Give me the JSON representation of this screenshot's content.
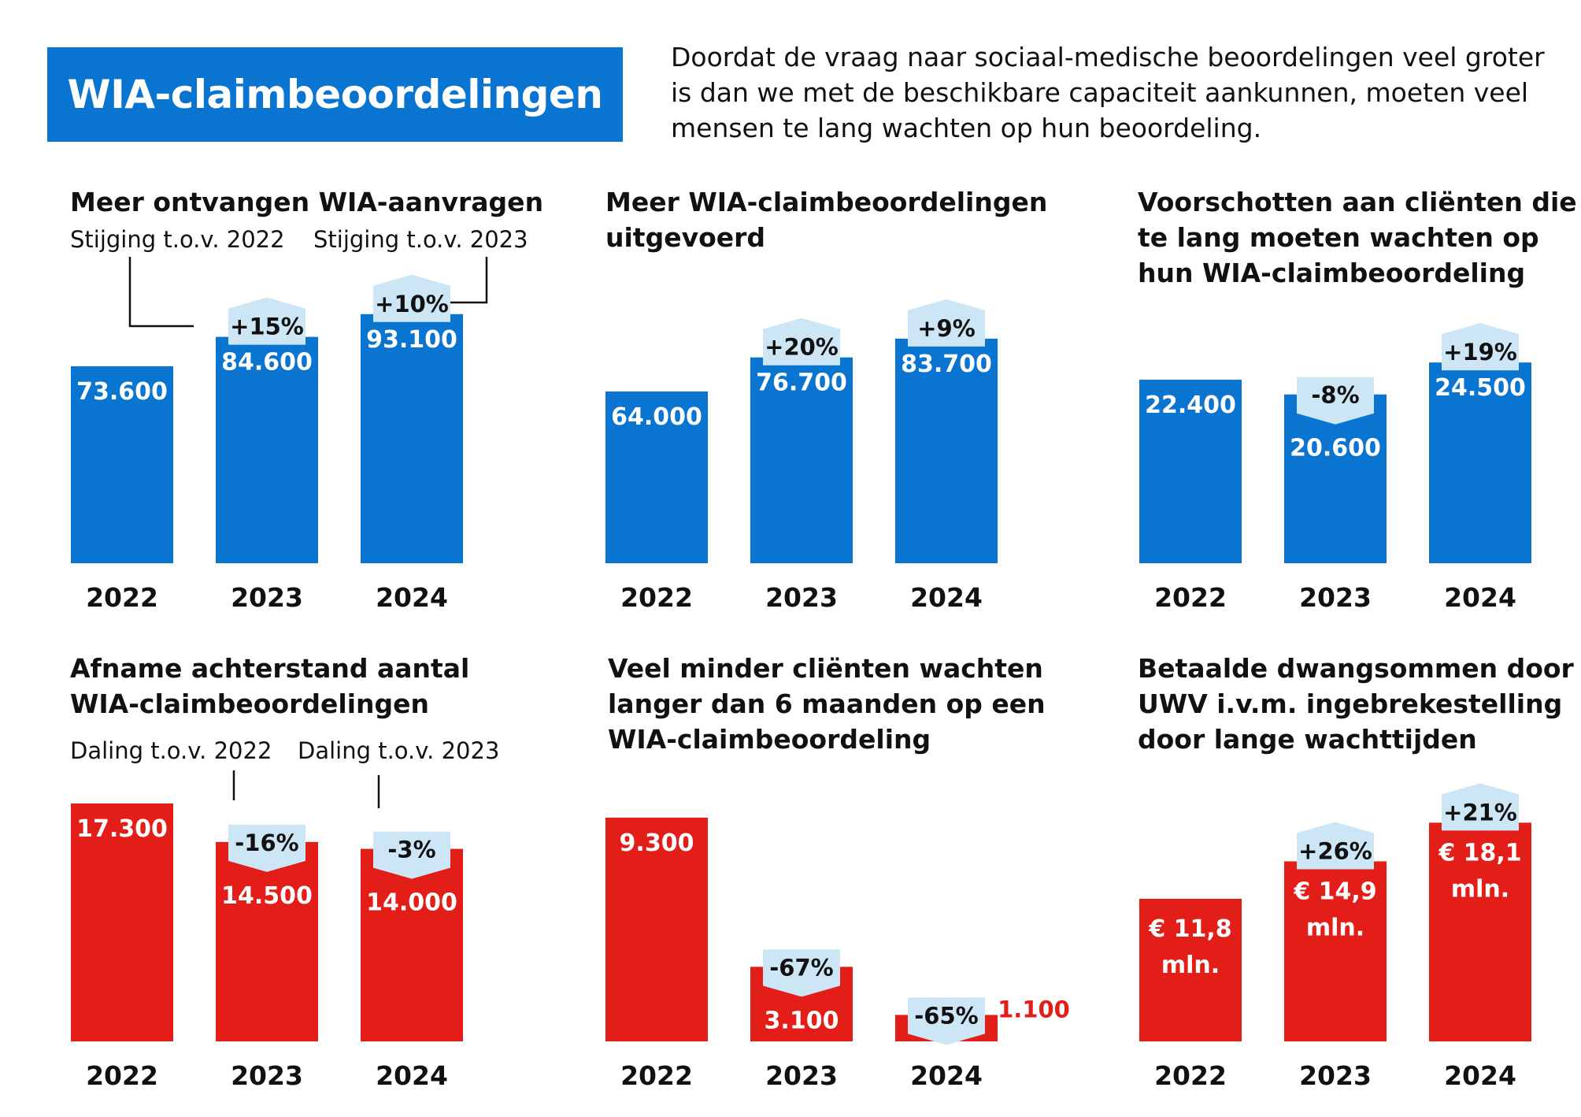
{
  "title": "WIA-claimbeoordelingen",
  "intro": "Doordat de vraag naar sociaal-medische beoordelingen veel groter is dan we met de beschikbare capaciteit aankunnen, moeten veel mensen te lang wachten op hun beoordeling.",
  "colors": {
    "title_bg": "#0a74d1",
    "blue": "#0a74d1",
    "red": "#e31e18",
    "badge": "#cce6f5",
    "text": "#111111"
  },
  "chart_data": [
    {
      "type": "bar",
      "title": "Meer ontvangen WIA-aanvragen",
      "categories": [
        "2022",
        "2023",
        "2024"
      ],
      "values": [
        73600,
        84600,
        93100
      ],
      "value_labels": [
        "73.600",
        "84.600",
        "93.100"
      ],
      "changes": [
        "",
        "+15%",
        "+10%"
      ],
      "annotations": [
        "Stijging t.o.v. 2022",
        "Stijging t.o.v. 2023"
      ],
      "color": "#0a74d1"
    },
    {
      "type": "bar",
      "title": "Meer WIA-claimbeoordelingen uitgevoerd",
      "categories": [
        "2022",
        "2023",
        "2024"
      ],
      "values": [
        64000,
        76700,
        83700
      ],
      "value_labels": [
        "64.000",
        "76.700",
        "83.700"
      ],
      "changes": [
        "",
        "+20%",
        "+9%"
      ],
      "color": "#0a74d1"
    },
    {
      "type": "bar",
      "title": "Voorschotten aan cliënten die te lang moeten wachten op hun WIA-claimbeoordeling",
      "categories": [
        "2022",
        "2023",
        "2024"
      ],
      "values": [
        22400,
        20600,
        24500
      ],
      "value_labels": [
        "22.400",
        "20.600",
        "24.500"
      ],
      "changes": [
        "",
        "-8%",
        "+19%"
      ],
      "color": "#0a74d1"
    },
    {
      "type": "bar",
      "title": "Afname achterstand aantal WIA-claimbeoordelingen",
      "categories": [
        "2022",
        "2023",
        "2024"
      ],
      "values": [
        17300,
        14500,
        14000
      ],
      "value_labels": [
        "17.300",
        "14.500",
        "14.000"
      ],
      "changes": [
        "",
        "-16%",
        "-3%"
      ],
      "annotations": [
        "Daling t.o.v. 2022",
        "Daling t.o.v. 2023"
      ],
      "color": "#e31e18"
    },
    {
      "type": "bar",
      "title": "Veel minder cliënten wachten langer dan 6 maanden op een WIA-claimbeoordeling",
      "categories": [
        "2022",
        "2023",
        "2024"
      ],
      "values": [
        9300,
        3100,
        1100
      ],
      "value_labels": [
        "9.300",
        "3.100",
        "1.100"
      ],
      "changes": [
        "",
        "-67%",
        "-65%"
      ],
      "color": "#e31e18"
    },
    {
      "type": "bar",
      "title": "Betaalde dwangsommen door UWV i.v.m. ingebrekestelling door lange wachttijden",
      "categories": [
        "2022",
        "2023",
        "2024"
      ],
      "values": [
        11.8,
        14.9,
        18.1
      ],
      "value_labels": [
        "€ 11,8 mln.",
        "€ 14,9 mln.",
        "€ 18,1 mln."
      ],
      "changes": [
        "",
        "+26%",
        "+21%"
      ],
      "color": "#e31e18"
    }
  ]
}
